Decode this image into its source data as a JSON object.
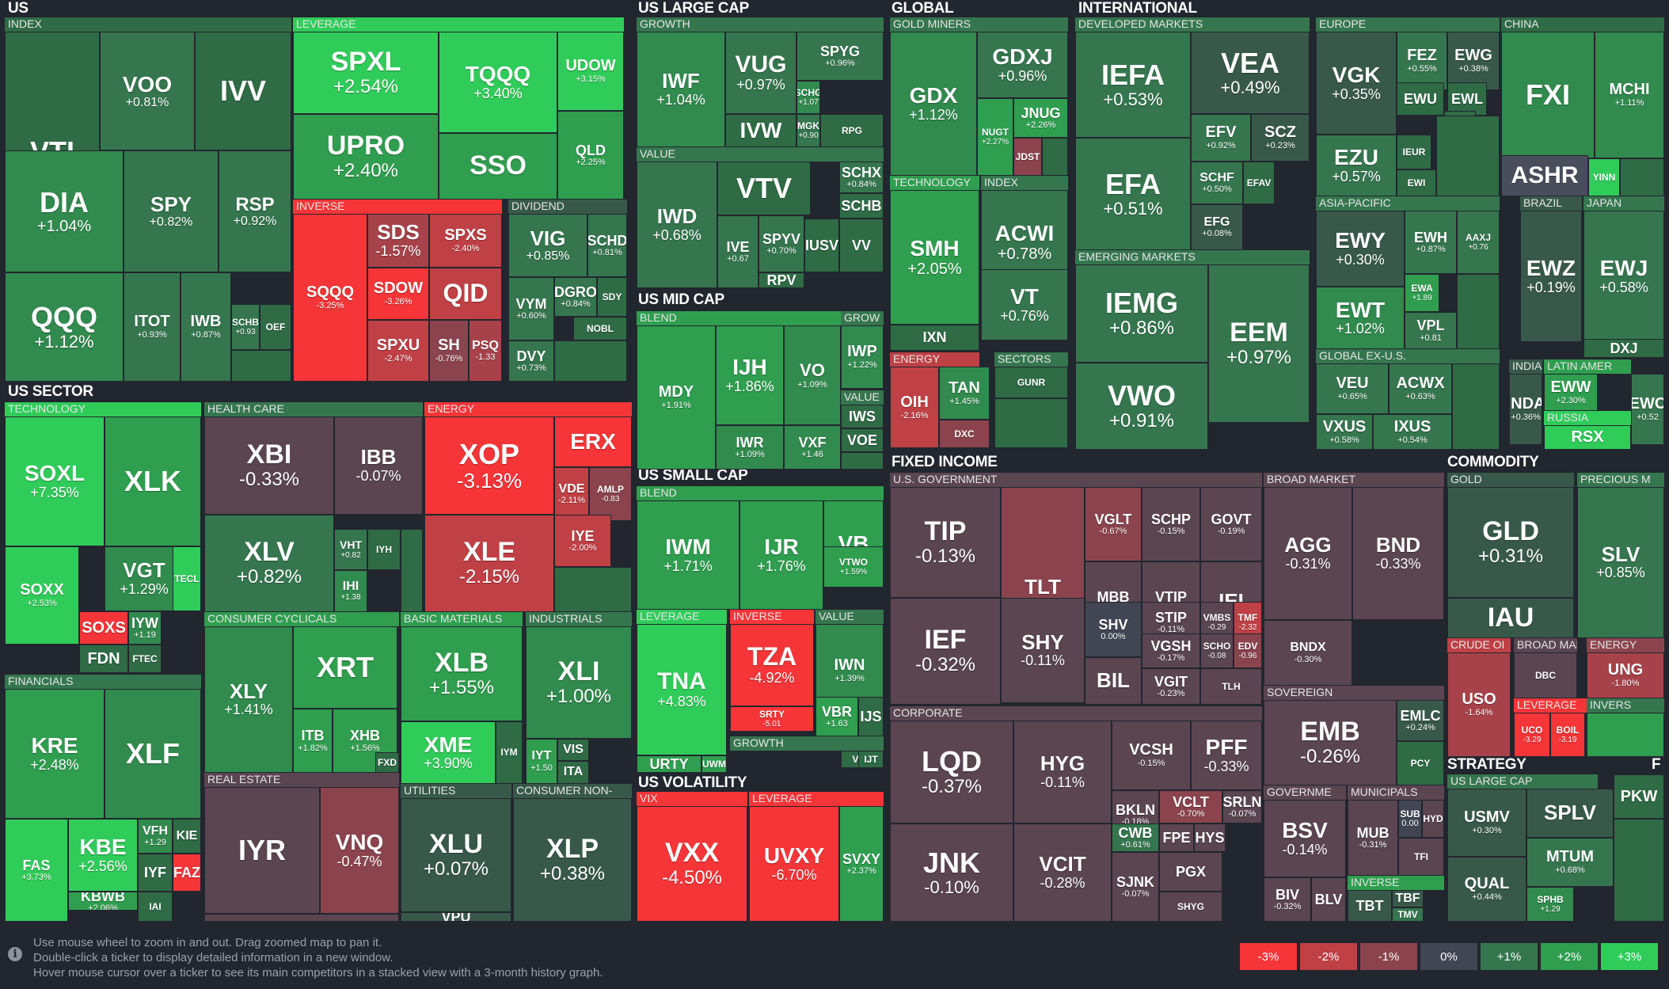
{
  "colors": {
    "bg": "#22262f",
    "scale": {
      "-3": "#f63538",
      "-2": "#bf4045",
      "-1": "#8b444e",
      "0": "#414554",
      "1": "#35764e",
      "2": "#2f9e4f",
      "3": "#30cc5a"
    }
  },
  "sections": [
    {
      "label": "US"
    },
    {
      "label": "US LARGE CAP"
    },
    {
      "label": "GLOBAL"
    },
    {
      "label": "INTERNATIONAL"
    },
    {
      "label": "US SECTOR"
    },
    {
      "label": "US MID CAP"
    },
    {
      "label": "US SMALL CAP"
    },
    {
      "label": "US VOLATILITY"
    },
    {
      "label": "FIXED INCOME"
    },
    {
      "label": "COMMODITY"
    },
    {
      "label": "STRATEGY"
    },
    {
      "label": "F"
    }
  ],
  "groups": [
    {
      "label": "INDEX"
    },
    {
      "label": "LEVERAGE"
    },
    {
      "label": "INVERSE"
    },
    {
      "label": "DIVIDEND"
    },
    {
      "label": "GROWTH"
    },
    {
      "label": "VALUE"
    },
    {
      "label": "GOLD MINERS"
    },
    {
      "label": "TECHNOLOGY"
    },
    {
      "label": "INDEX"
    },
    {
      "label": "ENERGY"
    },
    {
      "label": "SECTORS"
    },
    {
      "label": "DEVELOPED MARKETS"
    },
    {
      "label": "EUROPE"
    },
    {
      "label": "CHINA"
    },
    {
      "label": "ASIA-PACIFIC"
    },
    {
      "label": "BRAZIL"
    },
    {
      "label": "JAPAN"
    },
    {
      "label": "EMERGING MARKETS"
    },
    {
      "label": "GLOBAL EX-U.S."
    },
    {
      "label": "INDIA"
    },
    {
      "label": "LATIN AMER"
    },
    {
      "label": "RUSSIA"
    },
    {
      "label": "TECHNOLOGY"
    },
    {
      "label": "HEALTH CARE"
    },
    {
      "label": "ENERGY"
    },
    {
      "label": "FINANCIALS"
    },
    {
      "label": "CONSUMER CYCLICALS"
    },
    {
      "label": "BASIC MATERIALS"
    },
    {
      "label": "INDUSTRIALS"
    },
    {
      "label": "REAL ESTATE"
    },
    {
      "label": "UTILITIES"
    },
    {
      "label": "CONSUMER NON-"
    },
    {
      "label": "BLEND"
    },
    {
      "label": "GROW"
    },
    {
      "label": "VALUE"
    },
    {
      "label": "BLEND"
    },
    {
      "label": "LEVERAGE"
    },
    {
      "label": "INVERSE"
    },
    {
      "label": "VALUE"
    },
    {
      "label": "GROWTH"
    },
    {
      "label": "VIX"
    },
    {
      "label": "LEVERAGE"
    },
    {
      "label": "U.S. GOVERNMENT"
    },
    {
      "label": "BROAD MARKET"
    },
    {
      "label": "CORPORATE"
    },
    {
      "label": "SOVEREIGN"
    },
    {
      "label": "GOVERNME"
    },
    {
      "label": "MUNICIPALS"
    },
    {
      "label": "INVERSE"
    },
    {
      "label": "GOLD"
    },
    {
      "label": "PRECIOUS M"
    },
    {
      "label": "CRUDE OI"
    },
    {
      "label": "BROAD MAR"
    },
    {
      "label": "ENERGY"
    },
    {
      "label": "LEVERAGE"
    },
    {
      "label": "INVERS"
    },
    {
      "label": "US LARGE CAP"
    }
  ],
  "tiles": [
    {
      "t": "VTI",
      "c": ""
    },
    {
      "t": "VOO",
      "c": "+0.81%"
    },
    {
      "t": "IVV",
      "c": ""
    },
    {
      "t": "DIA",
      "c": "+1.04%"
    },
    {
      "t": "SPY",
      "c": "+0.82%"
    },
    {
      "t": "RSP",
      "c": "+0.92%"
    },
    {
      "t": "QQQ",
      "c": "+1.12%"
    },
    {
      "t": "ITOT",
      "c": "+0.93%"
    },
    {
      "t": "IWB",
      "c": "+0.87%"
    },
    {
      "t": "SCHB",
      "c": "+0.93"
    },
    {
      "t": "OEF",
      "c": ""
    },
    {
      "t": "",
      "c": ""
    },
    {
      "t": "SPXL",
      "c": "+2.54%"
    },
    {
      "t": "TQQQ",
      "c": "+3.40%"
    },
    {
      "t": "UDOW",
      "c": "+3.15%"
    },
    {
      "t": "UPRO",
      "c": "+2.40%"
    },
    {
      "t": "SSO",
      "c": ""
    },
    {
      "t": "QLD",
      "c": "+2.25%"
    },
    {
      "t": "SQQQ",
      "c": "-3.25%"
    },
    {
      "t": "SDS",
      "c": "-1.57%"
    },
    {
      "t": "SPXS",
      "c": "-2.40%"
    },
    {
      "t": "SDOW",
      "c": "-3.26%"
    },
    {
      "t": "QID",
      "c": ""
    },
    {
      "t": "SPXU",
      "c": "-2.47%"
    },
    {
      "t": "SH",
      "c": "-0.76%"
    },
    {
      "t": "PSQ",
      "c": "-1.33"
    },
    {
      "t": "VIG",
      "c": "+0.85%"
    },
    {
      "t": "SCHD",
      "c": "+0.81%"
    },
    {
      "t": "VYM",
      "c": "+0.60%"
    },
    {
      "t": "DGRO",
      "c": "+0.84%"
    },
    {
      "t": "SDY",
      "c": ""
    },
    {
      "t": "NOBL",
      "c": ""
    },
    {
      "t": "DVY",
      "c": "+0.73%"
    },
    {
      "t": "",
      "c": ""
    },
    {
      "t": "IWF",
      "c": "+1.04%"
    },
    {
      "t": "VUG",
      "c": "+0.97%"
    },
    {
      "t": "SPYG",
      "c": "+0.96%"
    },
    {
      "t": "SCHG",
      "c": "+1.07"
    },
    {
      "t": "IVW",
      "c": ""
    },
    {
      "t": "MGK",
      "c": "+0.90"
    },
    {
      "t": "RPG",
      "c": ""
    },
    {
      "t": "IWD",
      "c": "+0.68%"
    },
    {
      "t": "VTV",
      "c": ""
    },
    {
      "t": "SCHX",
      "c": "+0.84%"
    },
    {
      "t": "SCHB",
      "c": ""
    },
    {
      "t": "IVE",
      "c": "+0.67"
    },
    {
      "t": "SPYV",
      "c": "+0.70%"
    },
    {
      "t": "IUSV",
      "c": ""
    },
    {
      "t": "VV",
      "c": ""
    },
    {
      "t": "RPV",
      "c": ""
    },
    {
      "t": "GDX",
      "c": "+1.12%"
    },
    {
      "t": "GDXJ",
      "c": "+0.96%"
    },
    {
      "t": "NUGT",
      "c": "+2.27%"
    },
    {
      "t": "JNUG",
      "c": "+2.26%"
    },
    {
      "t": "JDST",
      "c": ""
    },
    {
      "t": "",
      "c": ""
    },
    {
      "t": "SMH",
      "c": "+2.05%"
    },
    {
      "t": "IXN",
      "c": ""
    },
    {
      "t": "ACWI",
      "c": "+0.78%"
    },
    {
      "t": "VT",
      "c": "+0.76%"
    },
    {
      "t": "OIH",
      "c": "-2.16%"
    },
    {
      "t": "TAN",
      "c": "+1.45%"
    },
    {
      "t": "DXC",
      "c": ""
    },
    {
      "t": "GUNR",
      "c": ""
    },
    {
      "t": "",
      "c": ""
    },
    {
      "t": "IEFA",
      "c": "+0.53%"
    },
    {
      "t": "VEA",
      "c": "+0.49%"
    },
    {
      "t": "EFA",
      "c": "+0.51%"
    },
    {
      "t": "EFV",
      "c": "+0.92%"
    },
    {
      "t": "SCZ",
      "c": "+0.23%"
    },
    {
      "t": "SCHF",
      "c": "+0.50%"
    },
    {
      "t": "EFAV",
      "c": ""
    },
    {
      "t": "EFG",
      "c": "+0.08%"
    },
    {
      "t": "VGK",
      "c": "+0.35%"
    },
    {
      "t": "FEZ",
      "c": "+0.55%"
    },
    {
      "t": "EWG",
      "c": "+0.38%"
    },
    {
      "t": "EWU",
      "c": ""
    },
    {
      "t": "EWL",
      "c": ""
    },
    {
      "t": "EWP",
      "c": ""
    },
    {
      "t": "EZU",
      "c": "+0.57%"
    },
    {
      "t": "IEUR",
      "c": ""
    },
    {
      "t": "EWI",
      "c": ""
    },
    {
      "t": "",
      "c": ""
    },
    {
      "t": "FXI",
      "c": ""
    },
    {
      "t": "MCHI",
      "c": "+1.11%"
    },
    {
      "t": "ASHR",
      "c": ""
    },
    {
      "t": "YINN",
      "c": ""
    },
    {
      "t": "",
      "c": ""
    },
    {
      "t": "EWY",
      "c": "+0.30%"
    },
    {
      "t": "EWH",
      "c": "+0.87%"
    },
    {
      "t": "AAXJ",
      "c": "+0.76"
    },
    {
      "t": "EWT",
      "c": "+1.02%"
    },
    {
      "t": "EWA",
      "c": "+1.89"
    },
    {
      "t": "VPL",
      "c": "+0.81"
    },
    {
      "t": "",
      "c": ""
    },
    {
      "t": "EWZ",
      "c": "+0.19%"
    },
    {
      "t": "EWJ",
      "c": "+0.58%"
    },
    {
      "t": "DXJ",
      "c": ""
    },
    {
      "t": "IEMG",
      "c": "+0.86%"
    },
    {
      "t": "EEM",
      "c": "+0.97%"
    },
    {
      "t": "VWO",
      "c": "+0.91%"
    },
    {
      "t": "VEU",
      "c": "+0.65%"
    },
    {
      "t": "ACWX",
      "c": "+0.63%"
    },
    {
      "t": "VXUS",
      "c": "+0.58%"
    },
    {
      "t": "IXUS",
      "c": "+0.54%"
    },
    {
      "t": "",
      "c": ""
    },
    {
      "t": "INDA",
      "c": "+0.36%"
    },
    {
      "t": "EWW",
      "c": "+2.30%"
    },
    {
      "t": "EWC",
      "c": "+0.52"
    },
    {
      "t": "RSX",
      "c": ""
    },
    {
      "t": "SOXL",
      "c": "+7.35%"
    },
    {
      "t": "XLK",
      "c": ""
    },
    {
      "t": "VGT",
      "c": "+1.29%"
    },
    {
      "t": "TECL",
      "c": ""
    },
    {
      "t": "SOXX",
      "c": "+2.53%"
    },
    {
      "t": "SOXS",
      "c": ""
    },
    {
      "t": "IYW",
      "c": "+1.19"
    },
    {
      "t": "FDN",
      "c": ""
    },
    {
      "t": "FTEC",
      "c": ""
    },
    {
      "t": "XBI",
      "c": "-0.33%"
    },
    {
      "t": "IBB",
      "c": "-0.07%"
    },
    {
      "t": "XLV",
      "c": "+0.82%"
    },
    {
      "t": "VHT",
      "c": "+0.82"
    },
    {
      "t": "IYH",
      "c": ""
    },
    {
      "t": "IHI",
      "c": "+1.38"
    },
    {
      "t": "",
      "c": ""
    },
    {
      "t": "XOP",
      "c": "-3.13%"
    },
    {
      "t": "ERX",
      "c": ""
    },
    {
      "t": "VDE",
      "c": "-2.11%"
    },
    {
      "t": "AMLP",
      "c": "-0.83"
    },
    {
      "t": "XLE",
      "c": "-2.15%"
    },
    {
      "t": "IYE",
      "c": "-2.00%"
    },
    {
      "t": "",
      "c": ""
    },
    {
      "t": "KRE",
      "c": "+2.48%"
    },
    {
      "t": "XLF",
      "c": ""
    },
    {
      "t": "FAS",
      "c": "+3.73%"
    },
    {
      "t": "KBE",
      "c": "+2.56%"
    },
    {
      "t": "VFH",
      "c": "+1.29"
    },
    {
      "t": "KIE",
      "c": ""
    },
    {
      "t": "IYF",
      "c": ""
    },
    {
      "t": "FAZ",
      "c": ""
    },
    {
      "t": "KBWB",
      "c": "+2.06%"
    },
    {
      "t": "IAI",
      "c": ""
    },
    {
      "t": "XLY",
      "c": "+1.41%"
    },
    {
      "t": "XRT",
      "c": ""
    },
    {
      "t": "ITB",
      "c": "+1.82%"
    },
    {
      "t": "XHB",
      "c": "+1.56%"
    },
    {
      "t": "FXD",
      "c": ""
    },
    {
      "t": "XLB",
      "c": "+1.55%"
    },
    {
      "t": "XME",
      "c": "+3.90%"
    },
    {
      "t": "IYM",
      "c": ""
    },
    {
      "t": "XLI",
      "c": "+1.00%"
    },
    {
      "t": "IYT",
      "c": "+1.50"
    },
    {
      "t": "VIS",
      "c": ""
    },
    {
      "t": "ITA",
      "c": ""
    },
    {
      "t": "IYR",
      "c": ""
    },
    {
      "t": "VNQ",
      "c": "-0.47%"
    },
    {
      "t": "",
      "c": ""
    },
    {
      "t": "XLU",
      "c": "+0.07%"
    },
    {
      "t": "VPU",
      "c": ""
    },
    {
      "t": "XLP",
      "c": "+0.38%"
    },
    {
      "t": "MDY",
      "c": "+1.91%"
    },
    {
      "t": "IJH",
      "c": "+1.86%"
    },
    {
      "t": "VO",
      "c": "+1.09%"
    },
    {
      "t": "IWR",
      "c": "+1.09%"
    },
    {
      "t": "VXF",
      "c": "+1.46"
    },
    {
      "t": "IWP",
      "c": "+1.22%"
    },
    {
      "t": "IWS",
      "c": ""
    },
    {
      "t": "VOE",
      "c": ""
    },
    {
      "t": "",
      "c": ""
    },
    {
      "t": "IWM",
      "c": "+1.71%"
    },
    {
      "t": "IJR",
      "c": "+1.76%"
    },
    {
      "t": "VB",
      "c": ""
    },
    {
      "t": "VTWO",
      "c": "+1.59%"
    },
    {
      "t": "TNA",
      "c": "+4.83%"
    },
    {
      "t": "URTY",
      "c": ""
    },
    {
      "t": "UWM",
      "c": ""
    },
    {
      "t": "TZA",
      "c": "-4.92%"
    },
    {
      "t": "SRTY",
      "c": "-5.01"
    },
    {
      "t": "IWN",
      "c": "+1.39%"
    },
    {
      "t": "VBR",
      "c": "+1.63"
    },
    {
      "t": "IJS",
      "c": ""
    },
    {
      "t": "VBK",
      "c": ""
    },
    {
      "t": "IJT",
      "c": ""
    },
    {
      "t": "VXX",
      "c": "-4.50%"
    },
    {
      "t": "UVXY",
      "c": "-6.70%"
    },
    {
      "t": "SVXY",
      "c": "+2.37%"
    },
    {
      "t": "TIP",
      "c": "-0.13%"
    },
    {
      "t": "TLT",
      "c": "-0.67%"
    },
    {
      "t": "VGLT",
      "c": "-0.67%"
    },
    {
      "t": "SCHP",
      "c": "-0.15%"
    },
    {
      "t": "GOVT",
      "c": "-0.19%"
    },
    {
      "t": "MBB",
      "c": "-0.25%"
    },
    {
      "t": "VTIP",
      "c": "-0.12%"
    },
    {
      "t": "IEI",
      "c": ""
    },
    {
      "t": "IEF",
      "c": "-0.32%"
    },
    {
      "t": "SHY",
      "c": "-0.11%"
    },
    {
      "t": "SHV",
      "c": "0.00%"
    },
    {
      "t": "STIP",
      "c": "-0.11%"
    },
    {
      "t": "VMBS",
      "c": "-0.29"
    },
    {
      "t": "TMF",
      "c": "-2.32"
    },
    {
      "t": "VGSH",
      "c": "-0.17%"
    },
    {
      "t": "SCHO",
      "c": "-0.08"
    },
    {
      "t": "EDV",
      "c": "-0.96"
    },
    {
      "t": "BIL",
      "c": ""
    },
    {
      "t": "VGIT",
      "c": "-0.23%"
    },
    {
      "t": "TLH",
      "c": ""
    },
    {
      "t": "AGG",
      "c": "-0.31%"
    },
    {
      "t": "BND",
      "c": "-0.33%"
    },
    {
      "t": "BNDX",
      "c": "-0.30%"
    },
    {
      "t": "LQD",
      "c": "-0.37%"
    },
    {
      "t": "HYG",
      "c": "-0.11%"
    },
    {
      "t": "VCSH",
      "c": "-0.15%"
    },
    {
      "t": "PFF",
      "c": "-0.33%"
    },
    {
      "t": "BKLN",
      "c": "-0.18%"
    },
    {
      "t": "VCLT",
      "c": "-0.70%"
    },
    {
      "t": "SRLN",
      "c": "-0.07%"
    },
    {
      "t": "CWB",
      "c": "+0.61%"
    },
    {
      "t": "FPE",
      "c": ""
    },
    {
      "t": "HYS",
      "c": ""
    },
    {
      "t": "JNK",
      "c": "-0.10%"
    },
    {
      "t": "VCIT",
      "c": "-0.28%"
    },
    {
      "t": "SJNK",
      "c": "-0.07%"
    },
    {
      "t": "PGX",
      "c": ""
    },
    {
      "t": "SHYG",
      "c": ""
    },
    {
      "t": "EMB",
      "c": "-0.26%"
    },
    {
      "t": "EMLC",
      "c": "+0.24%"
    },
    {
      "t": "PCY",
      "c": ""
    },
    {
      "t": "BSV",
      "c": "-0.14%"
    },
    {
      "t": "BIV",
      "c": "-0.32%"
    },
    {
      "t": "BLV",
      "c": ""
    },
    {
      "t": "MUB",
      "c": "-0.31%"
    },
    {
      "t": "SUB",
      "c": "0.00"
    },
    {
      "t": "HYD",
      "c": ""
    },
    {
      "t": "TFI",
      "c": ""
    },
    {
      "t": "TBT",
      "c": ""
    },
    {
      "t": "TBF",
      "c": ""
    },
    {
      "t": "TMV",
      "c": ""
    },
    {
      "t": "GLD",
      "c": "+0.31%"
    },
    {
      "t": "IAU",
      "c": ""
    },
    {
      "t": "SLV",
      "c": "+0.85%"
    },
    {
      "t": "USO",
      "c": "-1.64%"
    },
    {
      "t": "DBC",
      "c": ""
    },
    {
      "t": "UNG",
      "c": "-1.80%"
    },
    {
      "t": "UCO",
      "c": "-3.29"
    },
    {
      "t": "BOIL",
      "c": "-3.19"
    },
    {
      "t": "",
      "c": ""
    },
    {
      "t": "",
      "c": ""
    },
    {
      "t": "USMV",
      "c": "+0.30%"
    },
    {
      "t": "SPLV",
      "c": ""
    },
    {
      "t": "QUAL",
      "c": "+0.44%"
    },
    {
      "t": "MTUM",
      "c": "+0.68%"
    },
    {
      "t": "SPHB",
      "c": "+1.29"
    },
    {
      "t": "PKW",
      "c": ""
    },
    {
      "t": "",
      "c": ""
    }
  ],
  "help": {
    "line1": "Use mouse wheel to zoom in and out. Drag zoomed map to pan it.",
    "line2": "Double-click a ticker to display detailed information in a new window.",
    "line3": "Hover mouse cursor over a ticker to see its main competitors in a stacked view with a 3-month history graph.",
    "icon": "info-icon",
    "icon_glyph": "i"
  },
  "legend": [
    {
      "label": "-3%",
      "color": "#f63538"
    },
    {
      "label": "-2%",
      "color": "#bf4045"
    },
    {
      "label": "-1%",
      "color": "#8b444e"
    },
    {
      "label": "0%",
      "color": "#414554"
    },
    {
      "label": "+1%",
      "color": "#35764e"
    },
    {
      "label": "+2%",
      "color": "#2f9e4f"
    },
    {
      "label": "+3%",
      "color": "#30cc5a"
    }
  ]
}
